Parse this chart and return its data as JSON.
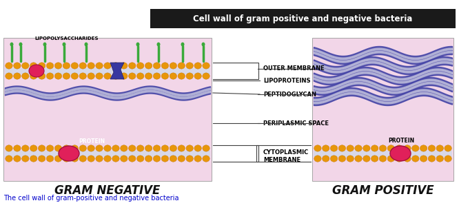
{
  "title": "Cell wall of gram positive and negative bacteria",
  "subtitle": "The cell wall of gram-positive and negative bacteria",
  "gram_negative_label": "GRAM NEGATIVE",
  "gram_positive_label": "GRAM POSITIVE",
  "labels": {
    "outer_membrane": "OUTER MEMBRANE",
    "lipoproteins": "LIPOPROTEINS",
    "peptidoglycan": "PEPTIDOGLYCAN",
    "periplasmic": "PERIPLASMIC SPACE",
    "cytoplasmic": "CYTOPLASMIC\nMEMBRANE",
    "protein": "PROTEIN",
    "lipopolysaccharides": "LIPOPOLYSACCHARIDES"
  },
  "colors": {
    "background": "#ffffff",
    "title_bg": "#1a1a1a",
    "title_text": "#ffffff",
    "cell_bg": "#f2d6e8",
    "bead_color": "#e8960a",
    "bead_edge": "#c07808",
    "bilayer_color": "#d8d8e8",
    "peptidoglycan": "#4848a8",
    "pg_stripe": "#c8c8e0",
    "protein_color": "#e0205a",
    "protein_edge": "#a01040",
    "lipopoly_green": "#3aaa3a",
    "channel_blue": "#3838a0",
    "label_line": "#404040",
    "gram_text": "#111111",
    "subtitle_text": "#0000cc",
    "bracket_color": "#404040"
  },
  "fig_width": 6.66,
  "fig_height": 2.95,
  "dpi": 100
}
